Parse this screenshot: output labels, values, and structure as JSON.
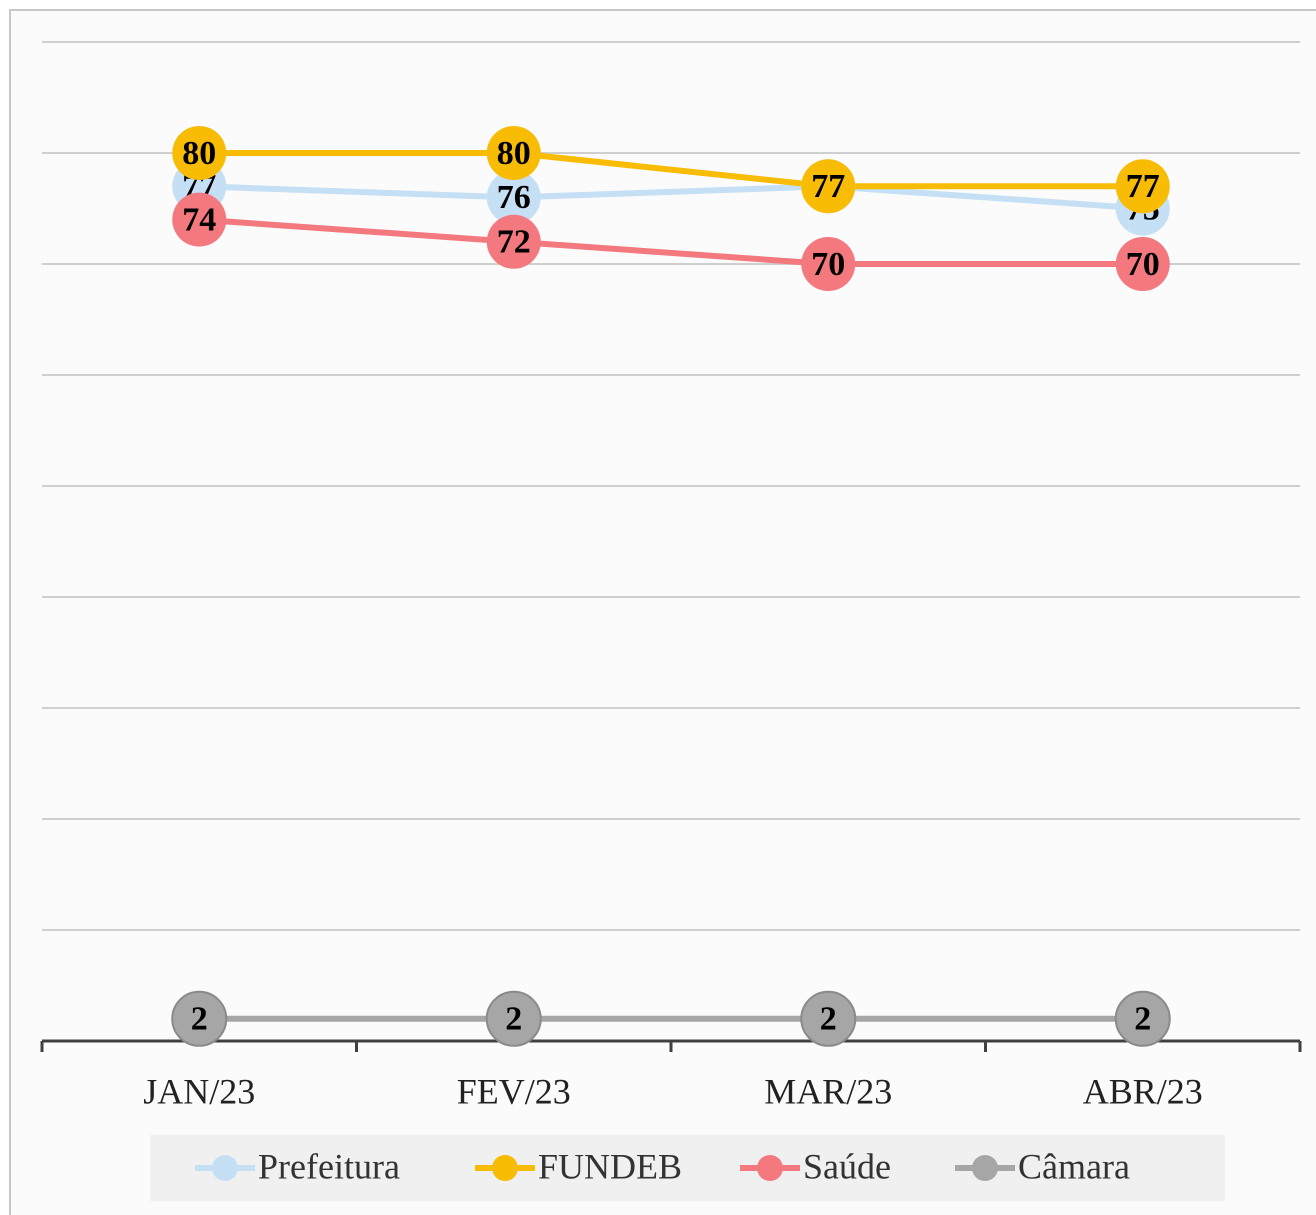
{
  "chart_data": {
    "type": "line",
    "categories": [
      "JAN/23",
      "FEV/23",
      "MAR/23",
      "ABR/23"
    ],
    "series": [
      {
        "name": "Prefeitura",
        "color": "#c5dff5",
        "values": [
          77,
          76,
          77,
          75
        ]
      },
      {
        "name": "FUNDEB",
        "color": "#f9bc05",
        "values": [
          80,
          80,
          77,
          77
        ]
      },
      {
        "name": "Saúde",
        "color": "#f4797f",
        "values": [
          74,
          72,
          70,
          70
        ]
      },
      {
        "name": "Câmara",
        "color": "#a6a6a6",
        "values": [
          2,
          2,
          2,
          2
        ]
      }
    ],
    "ylim": [
      0,
      90
    ],
    "yticks": [
      0,
      10,
      20,
      30,
      40,
      50,
      60,
      70,
      80,
      90
    ],
    "grid": true,
    "legend": "bottom"
  }
}
